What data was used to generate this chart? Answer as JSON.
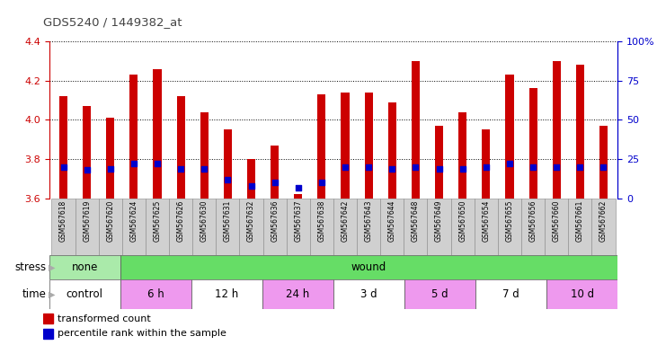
{
  "title": "GDS5240 / 1449382_at",
  "samples": [
    "GSM567618",
    "GSM567619",
    "GSM567620",
    "GSM567624",
    "GSM567625",
    "GSM567626",
    "GSM567630",
    "GSM567631",
    "GSM567632",
    "GSM567636",
    "GSM567637",
    "GSM567638",
    "GSM567642",
    "GSM567643",
    "GSM567644",
    "GSM567648",
    "GSM567649",
    "GSM567650",
    "GSM567654",
    "GSM567655",
    "GSM567656",
    "GSM567660",
    "GSM567661",
    "GSM567662"
  ],
  "transformed_counts": [
    4.12,
    4.07,
    4.01,
    4.23,
    4.26,
    4.12,
    4.04,
    3.95,
    3.8,
    3.87,
    3.62,
    4.13,
    4.14,
    4.14,
    4.09,
    4.3,
    3.97,
    4.04,
    3.95,
    4.23,
    4.16,
    4.3,
    4.28,
    3.97
  ],
  "percentile_ranks": [
    20,
    18,
    19,
    22,
    22,
    19,
    19,
    12,
    8,
    10,
    7,
    10,
    20,
    20,
    19,
    20,
    19,
    19,
    20,
    22,
    20,
    20,
    20,
    20
  ],
  "bar_bottom": 3.6,
  "ylim": [
    3.6,
    4.4
  ],
  "right_ylim": [
    0,
    100
  ],
  "right_yticks": [
    0,
    25,
    50,
    75,
    100
  ],
  "right_yticklabels": [
    "0",
    "25",
    "50",
    "75",
    "100%"
  ],
  "left_yticks": [
    3.6,
    3.8,
    4.0,
    4.2,
    4.4
  ],
  "bar_color": "#cc0000",
  "dot_color": "#0000cc",
  "plot_bg": "#ffffff",
  "stress_bands": [
    {
      "label": "none",
      "start": 0,
      "end": 3,
      "color": "#aaeaaa"
    },
    {
      "label": "wound",
      "start": 3,
      "end": 24,
      "color": "#66dd66"
    }
  ],
  "time_groups": [
    {
      "label": "control",
      "start": 0,
      "end": 3,
      "color": "#ffffff"
    },
    {
      "label": "6 h",
      "start": 3,
      "end": 6,
      "color": "#ee99ee"
    },
    {
      "label": "12 h",
      "start": 6,
      "end": 9,
      "color": "#ffffff"
    },
    {
      "label": "24 h",
      "start": 9,
      "end": 12,
      "color": "#ee99ee"
    },
    {
      "label": "3 d",
      "start": 12,
      "end": 15,
      "color": "#ffffff"
    },
    {
      "label": "5 d",
      "start": 15,
      "end": 18,
      "color": "#ee99ee"
    },
    {
      "label": "7 d",
      "start": 18,
      "end": 21,
      "color": "#ffffff"
    },
    {
      "label": "10 d",
      "start": 21,
      "end": 24,
      "color": "#ee99ee"
    }
  ],
  "left_tick_color": "#cc0000",
  "right_tick_color": "#0000cc",
  "title_color": "#444444",
  "xtick_bg": "#d0d0d0",
  "legend_red": "transformed count",
  "legend_blue": "percentile rank within the sample"
}
